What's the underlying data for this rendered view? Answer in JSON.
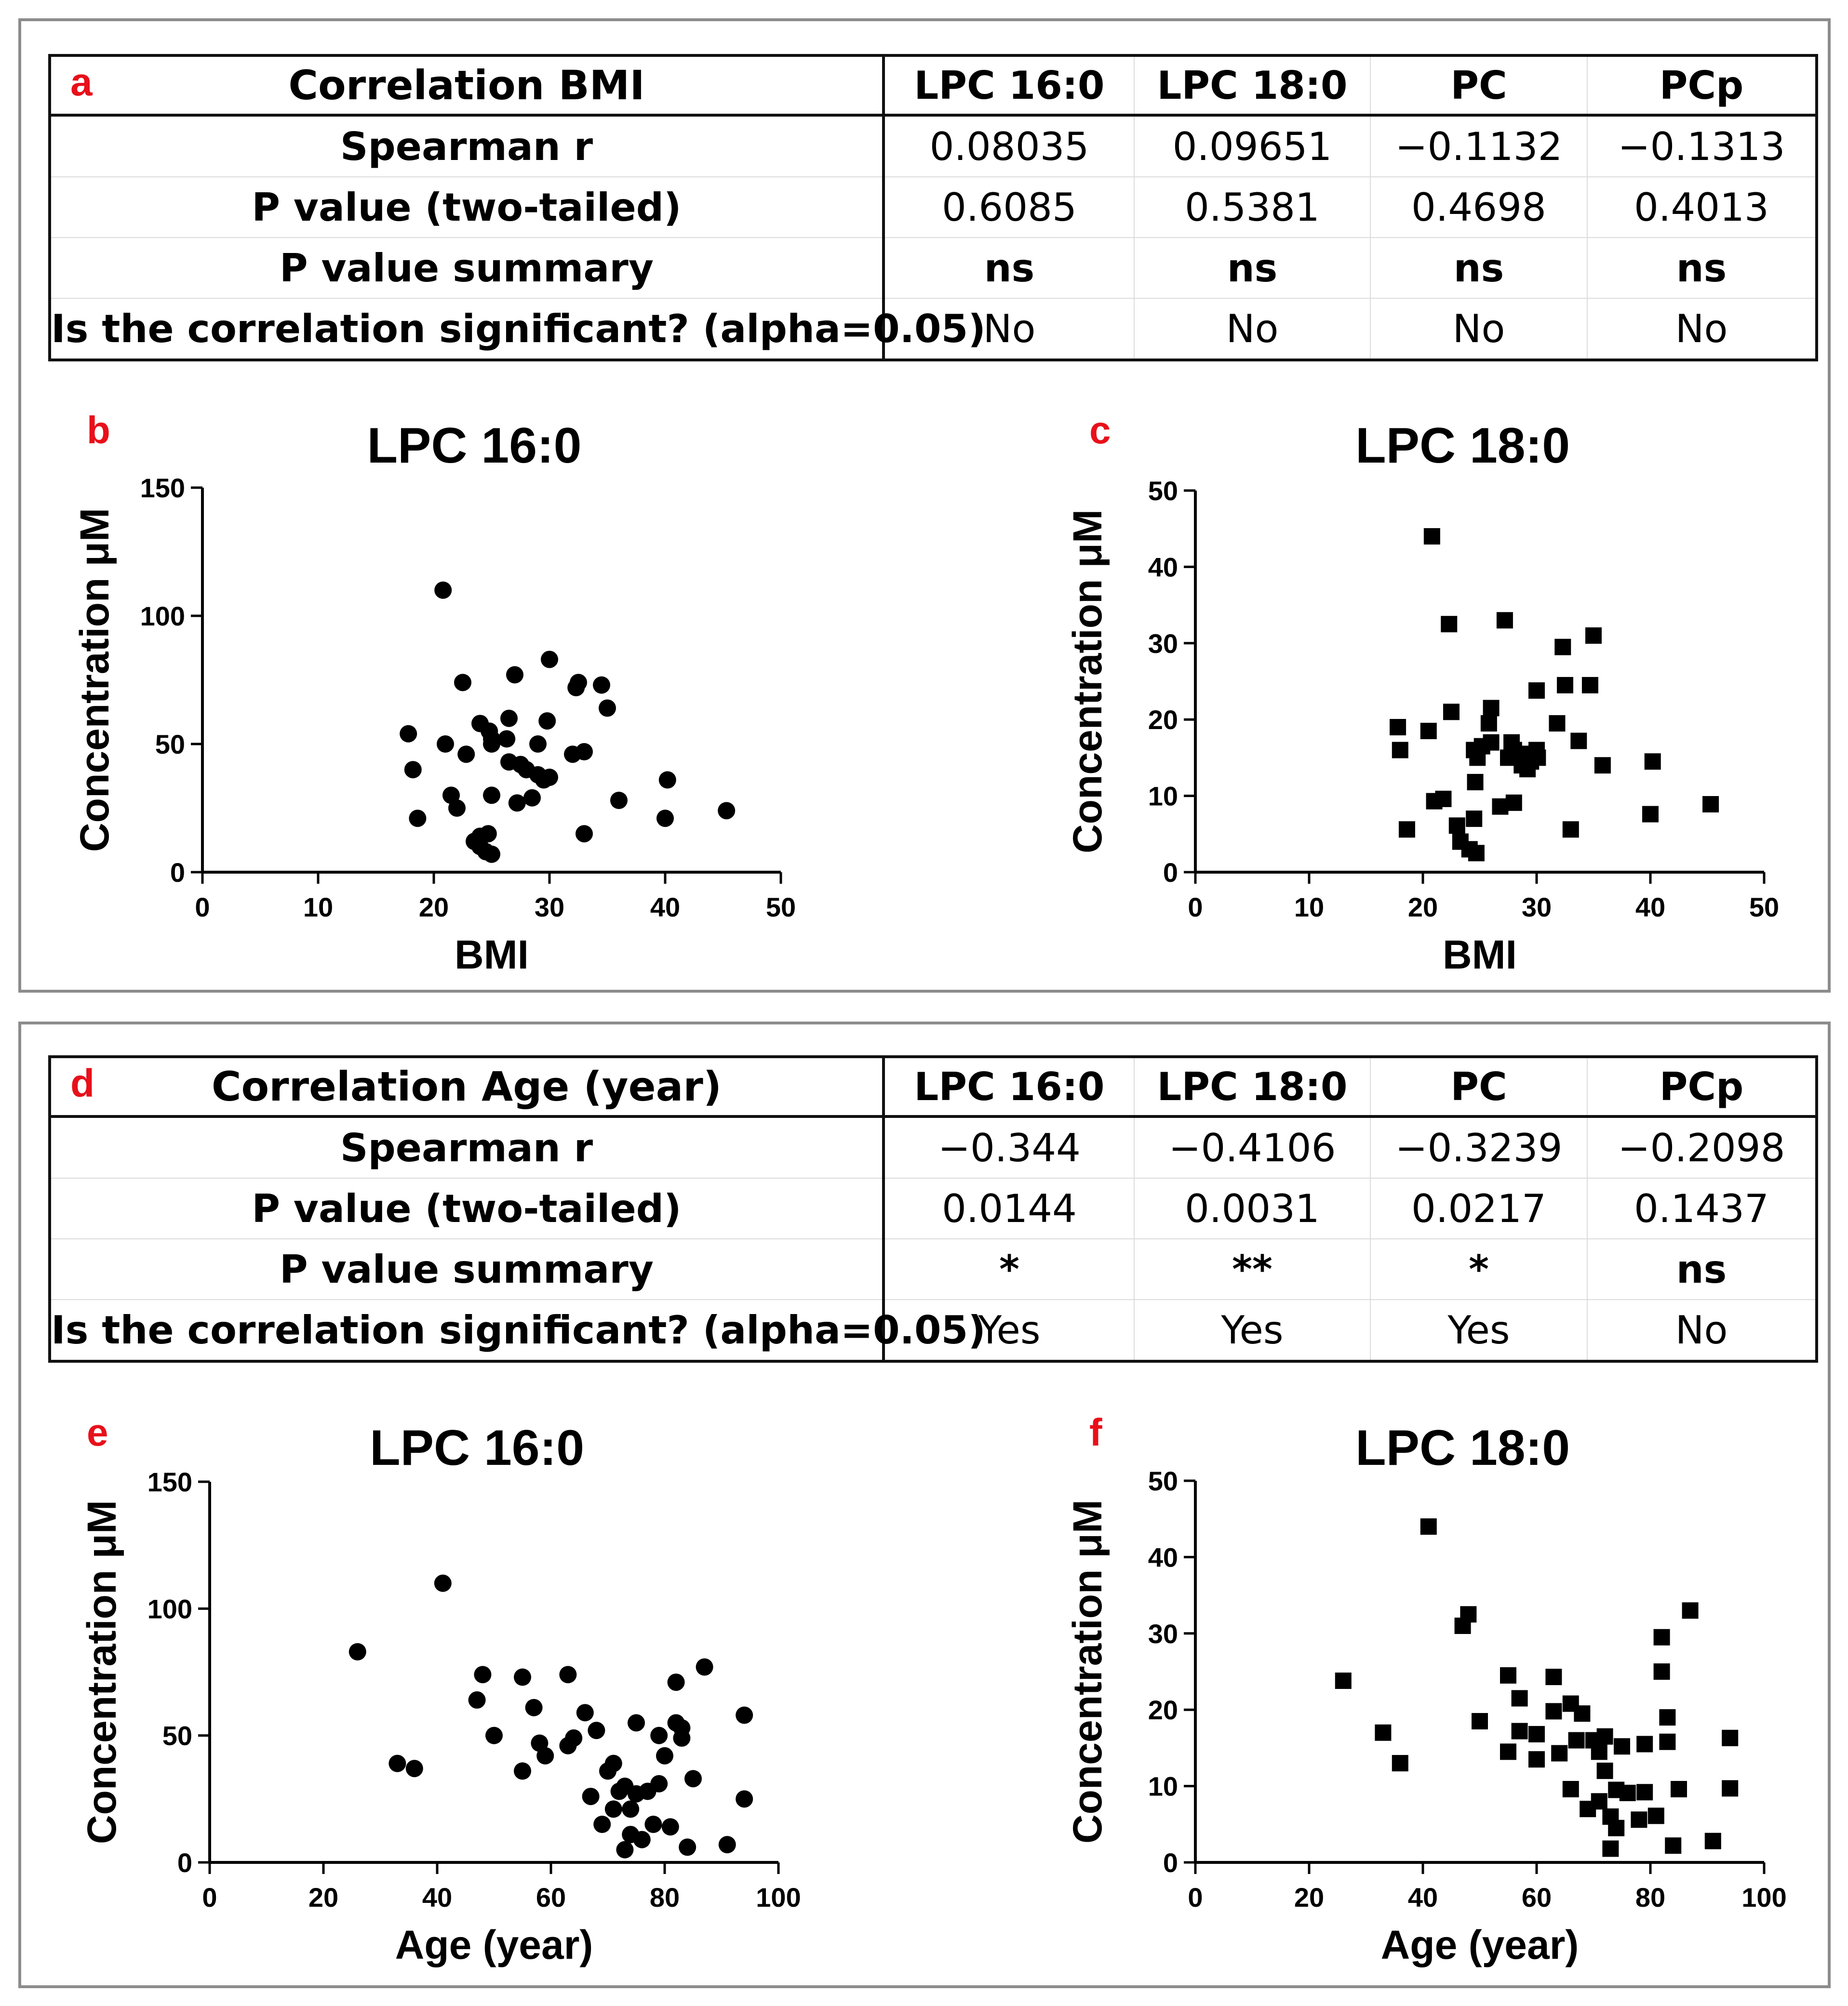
{
  "tables": [
    {
      "tag": "a",
      "title": "Correlation BMI",
      "columns": [
        "LPC 16:0",
        "LPC 18:0",
        "PC",
        "PCp"
      ],
      "rows": [
        {
          "label": "Spearman r",
          "values": [
            "0.08035",
            "0.09651",
            "−0.1132",
            "−0.1313"
          ],
          "bold": false
        },
        {
          "label": "P value (two-tailed)",
          "values": [
            "0.6085",
            "0.5381",
            "0.4698",
            "0.4013"
          ],
          "bold": false
        },
        {
          "label": "P value summary",
          "values": [
            "ns",
            "ns",
            "ns",
            "ns"
          ],
          "bold": true
        },
        {
          "label": "Is the correlation significant? (alpha=0.05)",
          "values": [
            "No",
            "No",
            "No",
            "No"
          ],
          "bold": false
        }
      ]
    },
    {
      "tag": "d",
      "title": "Correlation Age (year)",
      "columns": [
        "LPC 16:0",
        "LPC 18:0",
        "PC",
        "PCp"
      ],
      "rows": [
        {
          "label": "Spearman r",
          "values": [
            "−0.344",
            "−0.4106",
            "−0.3239",
            "−0.2098"
          ],
          "bold": false
        },
        {
          "label": "P value (two-tailed)",
          "values": [
            "0.0144",
            "0.0031",
            "0.0217",
            "0.1437"
          ],
          "bold": false
        },
        {
          "label": "P value summary",
          "values": [
            "*",
            "**",
            "*",
            "ns"
          ],
          "bold": true
        },
        {
          "label": "Is the correlation significant? (alpha=0.05)",
          "values": [
            "Yes",
            "Yes",
            "Yes",
            "No"
          ],
          "bold": false
        }
      ]
    }
  ],
  "chart_data": [
    {
      "tag": "b",
      "type": "scatter",
      "marker": "circle",
      "title": "LPC 16:0",
      "xlabel": "BMI",
      "ylabel": "Concentration μM",
      "xlim": [
        0,
        50
      ],
      "ylim": [
        0,
        150
      ],
      "xticks": [
        "0",
        "10",
        "20",
        "30",
        "40",
        "50"
      ],
      "yticks": [
        "0",
        "50",
        "100",
        "150"
      ],
      "points": [
        [
          20.8,
          110
        ],
        [
          22.5,
          74
        ],
        [
          27,
          77
        ],
        [
          30,
          83
        ],
        [
          32.5,
          74
        ],
        [
          34.5,
          73
        ],
        [
          32.3,
          72
        ],
        [
          35,
          64
        ],
        [
          24,
          58
        ],
        [
          26.5,
          60
        ],
        [
          29.8,
          59
        ],
        [
          17.8,
          54
        ],
        [
          24.8,
          55
        ],
        [
          25,
          52
        ],
        [
          26.3,
          52
        ],
        [
          21,
          50
        ],
        [
          25,
          50
        ],
        [
          29,
          50
        ],
        [
          33,
          47
        ],
        [
          22.8,
          46
        ],
        [
          32,
          46
        ],
        [
          26.5,
          43
        ],
        [
          27.5,
          42
        ],
        [
          28,
          40
        ],
        [
          29,
          38
        ],
        [
          18.2,
          40
        ],
        [
          30,
          37
        ],
        [
          29.5,
          36
        ],
        [
          40.2,
          36
        ],
        [
          21.5,
          30
        ],
        [
          25,
          30
        ],
        [
          28.5,
          29
        ],
        [
          27.2,
          27
        ],
        [
          36,
          28
        ],
        [
          22,
          25
        ],
        [
          45.3,
          24
        ],
        [
          18.6,
          21
        ],
        [
          40,
          21
        ],
        [
          24,
          14
        ],
        [
          24.7,
          15
        ],
        [
          33,
          15
        ],
        [
          23.5,
          12
        ],
        [
          24,
          10
        ],
        [
          24.5,
          8
        ],
        [
          25,
          7
        ]
      ]
    },
    {
      "tag": "c",
      "type": "scatter",
      "marker": "square",
      "title": "LPC 18:0",
      "xlabel": "BMI",
      "ylabel": "Concentration μM",
      "xlim": [
        0,
        50
      ],
      "ylim": [
        0,
        50
      ],
      "xticks": [
        "0",
        "10",
        "20",
        "30",
        "40",
        "50"
      ],
      "yticks": [
        "0",
        "10",
        "20",
        "30",
        "40",
        "50"
      ],
      "points": [
        [
          20.8,
          44
        ],
        [
          22.3,
          32.5
        ],
        [
          27.2,
          33
        ],
        [
          35,
          31
        ],
        [
          32.3,
          29.5
        ],
        [
          32.5,
          24.5
        ],
        [
          34.7,
          24.5
        ],
        [
          30,
          23.8
        ],
        [
          31.8,
          19.5
        ],
        [
          26,
          21.5
        ],
        [
          22.5,
          21
        ],
        [
          25.8,
          19.5
        ],
        [
          17.8,
          19
        ],
        [
          20.5,
          18.5
        ],
        [
          33.7,
          17.2
        ],
        [
          27.8,
          17
        ],
        [
          25.2,
          16.5
        ],
        [
          24.5,
          16
        ],
        [
          26,
          17
        ],
        [
          18,
          16
        ],
        [
          28,
          16
        ],
        [
          30,
          16
        ],
        [
          29,
          15.5
        ],
        [
          30.1,
          15
        ],
        [
          24.8,
          15
        ],
        [
          27.5,
          15
        ],
        [
          29.5,
          14.5
        ],
        [
          28.7,
          14
        ],
        [
          35.8,
          14
        ],
        [
          40.2,
          14.5
        ],
        [
          29.2,
          13.5
        ],
        [
          24.6,
          11.8
        ],
        [
          21.8,
          9.6
        ],
        [
          21,
          9.3
        ],
        [
          28,
          9.1
        ],
        [
          26.8,
          8.6
        ],
        [
          45.3,
          8.9
        ],
        [
          40,
          7.6
        ],
        [
          24.5,
          7
        ],
        [
          23,
          6.1
        ],
        [
          18.6,
          5.6
        ],
        [
          33,
          5.6
        ],
        [
          23.3,
          4
        ],
        [
          24.1,
          3
        ],
        [
          24.7,
          2.5
        ]
      ]
    },
    {
      "tag": "e",
      "type": "scatter",
      "marker": "circle",
      "title": "LPC 16:0",
      "xlabel": "Age (year)",
      "ylabel": "Concentration μM",
      "xlim": [
        0,
        100
      ],
      "ylim": [
        0,
        150
      ],
      "xticks": [
        "0",
        "20",
        "40",
        "60",
        "80",
        "100"
      ],
      "yticks": [
        "0",
        "50",
        "100",
        "150"
      ],
      "points": [
        [
          41,
          110
        ],
        [
          26,
          83
        ],
        [
          87,
          77
        ],
        [
          48,
          74
        ],
        [
          55,
          73
        ],
        [
          63,
          74
        ],
        [
          82,
          71
        ],
        [
          47,
          64
        ],
        [
          57,
          61
        ],
        [
          66,
          59
        ],
        [
          94,
          58
        ],
        [
          82,
          55
        ],
        [
          75,
          55
        ],
        [
          83,
          53
        ],
        [
          68,
          52
        ],
        [
          50,
          50
        ],
        [
          79,
          50
        ],
        [
          83,
          49
        ],
        [
          64,
          49
        ],
        [
          58,
          47
        ],
        [
          63,
          46
        ],
        [
          59,
          42
        ],
        [
          80,
          42
        ],
        [
          71,
          39
        ],
        [
          33,
          39
        ],
        [
          36,
          37
        ],
        [
          55,
          36
        ],
        [
          70,
          36
        ],
        [
          85,
          33
        ],
        [
          79,
          31
        ],
        [
          73,
          30
        ],
        [
          77,
          28
        ],
        [
          72,
          28
        ],
        [
          75,
          27
        ],
        [
          67,
          26
        ],
        [
          94,
          25
        ],
        [
          71,
          21
        ],
        [
          74,
          21
        ],
        [
          69,
          15
        ],
        [
          78,
          15
        ],
        [
          81,
          14
        ],
        [
          74,
          11
        ],
        [
          76,
          9
        ],
        [
          91,
          7
        ],
        [
          84,
          6
        ],
        [
          73,
          5
        ]
      ]
    },
    {
      "tag": "f",
      "type": "scatter",
      "marker": "square",
      "title": "LPC 18:0",
      "xlabel": "Age (year)",
      "ylabel": "Concentration μM",
      "xlim": [
        0,
        100
      ],
      "ylim": [
        0,
        50
      ],
      "xticks": [
        "0",
        "20",
        "40",
        "60",
        "80",
        "100"
      ],
      "yticks": [
        "0",
        "10",
        "20",
        "30",
        "40",
        "50"
      ],
      "points": [
        [
          41,
          44
        ],
        [
          87,
          33
        ],
        [
          48,
          32.5
        ],
        [
          47,
          31
        ],
        [
          82,
          29.5
        ],
        [
          26,
          23.8
        ],
        [
          82,
          25
        ],
        [
          55,
          24.5
        ],
        [
          63,
          24.3
        ],
        [
          57,
          21.5
        ],
        [
          66,
          20.8
        ],
        [
          63,
          19.8
        ],
        [
          68,
          19.5
        ],
        [
          83,
          19
        ],
        [
          50,
          18.5
        ],
        [
          33,
          17
        ],
        [
          57,
          17.2
        ],
        [
          60,
          16.8
        ],
        [
          72,
          16.5
        ],
        [
          94,
          16.3
        ],
        [
          70,
          16
        ],
        [
          75,
          15.2
        ],
        [
          79,
          15.5
        ],
        [
          83,
          15.8
        ],
        [
          67,
          16
        ],
        [
          55,
          14.5
        ],
        [
          60,
          13.5
        ],
        [
          36,
          13
        ],
        [
          71,
          14.5
        ],
        [
          64,
          14.3
        ],
        [
          72,
          12
        ],
        [
          74,
          9.5
        ],
        [
          76,
          9.1
        ],
        [
          79,
          9.2
        ],
        [
          85,
          9.6
        ],
        [
          94,
          9.7
        ],
        [
          66,
          9.6
        ],
        [
          71,
          8
        ],
        [
          69,
          7
        ],
        [
          73,
          6
        ],
        [
          78,
          5.6
        ],
        [
          81,
          6.1
        ],
        [
          74,
          4.5
        ],
        [
          91,
          2.8
        ],
        [
          84,
          2.2
        ],
        [
          73,
          1.8
        ]
      ]
    }
  ]
}
